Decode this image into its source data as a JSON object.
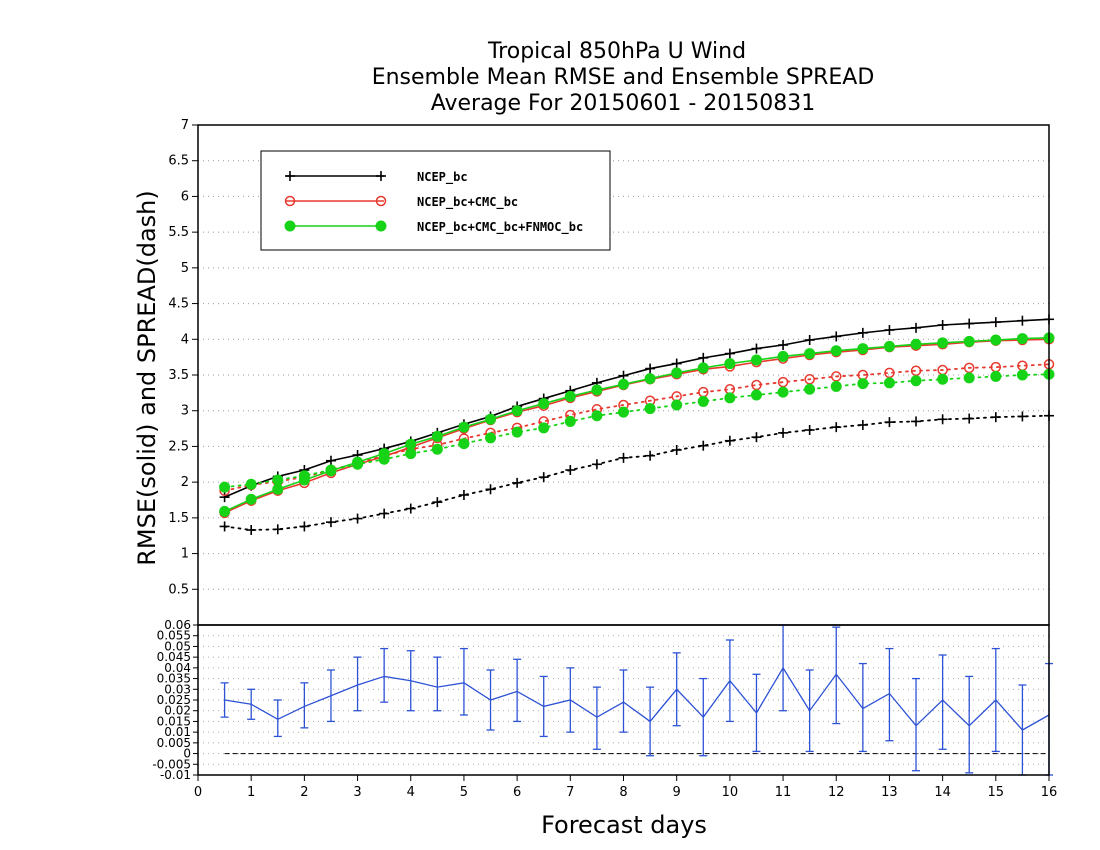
{
  "chart_data": [
    {
      "type": "line",
      "title": [
        "Tropical 850hPa U Wind",
        "Ensemble Mean RMSE and Ensemble SPREAD",
        "Average For 20150601 - 20150831"
      ],
      "ylabel": "RMSE(solid) and SPREAD(dash)",
      "ylim": [
        0,
        7
      ],
      "yticks": [
        "0.5",
        "1",
        "1.5",
        "2",
        "2.5",
        "3",
        "3.5",
        "4",
        "4.5",
        "5",
        "5.5",
        "6",
        "6.5",
        "7"
      ],
      "x": [
        0.5,
        1,
        1.5,
        2,
        2.5,
        3,
        3.5,
        4,
        4.5,
        5,
        5.5,
        6,
        6.5,
        7,
        7.5,
        8,
        8.5,
        9,
        9.5,
        10,
        10.5,
        11,
        11.5,
        12,
        12.5,
        13,
        13.5,
        14,
        14.5,
        15,
        15.5,
        16
      ],
      "grid": true,
      "legend_position": "top-left",
      "series": [
        {
          "name": "NCEP_bc",
          "style": "solid",
          "marker": "plus",
          "color": "#000000",
          "values": [
            1.79,
            1.95,
            2.08,
            2.17,
            2.3,
            2.38,
            2.47,
            2.57,
            2.69,
            2.81,
            2.92,
            3.06,
            3.17,
            3.28,
            3.39,
            3.49,
            3.59,
            3.66,
            3.74,
            3.8,
            3.87,
            3.92,
            3.99,
            4.04,
            4.09,
            4.13,
            4.16,
            4.2,
            4.22,
            4.24,
            4.26,
            4.28
          ]
        },
        {
          "name": "NCEP_bc",
          "style": "dash",
          "marker": "plus",
          "color": "#000000",
          "values": [
            1.38,
            1.33,
            1.34,
            1.38,
            1.44,
            1.49,
            1.56,
            1.63,
            1.72,
            1.82,
            1.9,
            1.99,
            2.07,
            2.17,
            2.25,
            2.34,
            2.37,
            2.45,
            2.51,
            2.58,
            2.63,
            2.69,
            2.73,
            2.77,
            2.8,
            2.84,
            2.85,
            2.88,
            2.89,
            2.91,
            2.92,
            2.93
          ]
        },
        {
          "name": "NCEP_bc+CMC_bc",
          "style": "solid",
          "marker": "open-circle",
          "color": "#e8392f",
          "values": [
            1.57,
            1.74,
            1.88,
            1.99,
            2.13,
            2.25,
            2.36,
            2.49,
            2.62,
            2.75,
            2.87,
            2.98,
            3.07,
            3.18,
            3.27,
            3.36,
            3.44,
            3.51,
            3.58,
            3.62,
            3.68,
            3.73,
            3.78,
            3.82,
            3.85,
            3.89,
            3.91,
            3.93,
            3.96,
            3.98,
            3.99,
            4.0
          ]
        },
        {
          "name": "NCEP_bc+CMC_bc",
          "style": "dash",
          "marker": "open-circle",
          "color": "#e8392f",
          "values": [
            1.88,
            1.96,
            2.01,
            2.07,
            2.17,
            2.27,
            2.37,
            2.46,
            2.52,
            2.61,
            2.69,
            2.76,
            2.85,
            2.94,
            3.02,
            3.08,
            3.14,
            3.2,
            3.26,
            3.3,
            3.36,
            3.4,
            3.44,
            3.48,
            3.5,
            3.53,
            3.56,
            3.57,
            3.6,
            3.61,
            3.63,
            3.65
          ]
        },
        {
          "name": "NCEP_bc+CMC_bc+FNMOC_bc",
          "style": "solid",
          "marker": "filled-circle",
          "color": "#17d317",
          "values": [
            1.59,
            1.76,
            1.9,
            2.03,
            2.16,
            2.28,
            2.4,
            2.53,
            2.64,
            2.77,
            2.88,
            3.0,
            3.1,
            3.2,
            3.29,
            3.37,
            3.45,
            3.53,
            3.6,
            3.66,
            3.71,
            3.76,
            3.8,
            3.84,
            3.87,
            3.9,
            3.93,
            3.95,
            3.97,
            3.99,
            4.01,
            4.02
          ]
        },
        {
          "name": "NCEP_bc+CMC_bc+FNMOC_bc",
          "style": "dash",
          "marker": "filled-circle",
          "color": "#17d317",
          "values": [
            1.93,
            1.97,
            2.03,
            2.09,
            2.17,
            2.25,
            2.32,
            2.4,
            2.46,
            2.54,
            2.62,
            2.7,
            2.76,
            2.85,
            2.93,
            2.98,
            3.03,
            3.08,
            3.13,
            3.18,
            3.22,
            3.26,
            3.3,
            3.34,
            3.38,
            3.39,
            3.42,
            3.44,
            3.46,
            3.48,
            3.5,
            3.51
          ]
        }
      ]
    },
    {
      "type": "line",
      "subtype": "errorbar",
      "xlabel": "Forecast days",
      "ylim": [
        -0.01,
        0.06
      ],
      "yticks": [
        "-0.01",
        "-0.005",
        "0",
        "0.005",
        "0.01",
        "0.015",
        "0.02",
        "0.025",
        "0.03",
        "0.035",
        "0.04",
        "0.045",
        "0.05",
        "0.055",
        "0.06"
      ],
      "xlim": [
        0,
        16
      ],
      "xticks": [
        "0",
        "1",
        "2",
        "3",
        "4",
        "5",
        "6",
        "7",
        "8",
        "9",
        "10",
        "11",
        "12",
        "13",
        "14",
        "15",
        "16"
      ],
      "grid": true,
      "zero_line": 0,
      "series": [
        {
          "color": "#2d52d6",
          "x": [
            0.5,
            1,
            1.5,
            2,
            2.5,
            3,
            3.5,
            4,
            4.5,
            5,
            5.5,
            6,
            6.5,
            7,
            7.5,
            8,
            8.5,
            9,
            9.5,
            10,
            10.5,
            11,
            11.5,
            12,
            12.5,
            13,
            13.5,
            14,
            14.5,
            15,
            15.5,
            16
          ],
          "values": [
            0.025,
            0.023,
            0.016,
            0.022,
            0.027,
            0.032,
            0.036,
            0.034,
            0.031,
            0.033,
            0.025,
            0.029,
            0.022,
            0.025,
            0.017,
            0.024,
            0.015,
            0.03,
            0.017,
            0.034,
            0.019,
            0.04,
            0.02,
            0.037,
            0.021,
            0.028,
            0.013,
            0.025,
            0.013,
            0.025,
            0.011,
            0.018
          ],
          "lower": [
            0.017,
            0.016,
            0.008,
            0.012,
            0.015,
            0.02,
            0.024,
            0.02,
            0.02,
            0.018,
            0.011,
            0.015,
            0.008,
            0.01,
            0.002,
            0.01,
            -0.001,
            0.013,
            -0.001,
            0.015,
            0.001,
            0.02,
            0.001,
            0.014,
            0.001,
            0.006,
            -0.008,
            0.002,
            -0.009,
            0.001,
            -0.01,
            -0.01
          ],
          "upper": [
            0.033,
            0.03,
            0.025,
            0.033,
            0.039,
            0.045,
            0.049,
            0.048,
            0.045,
            0.049,
            0.039,
            0.044,
            0.036,
            0.04,
            0.031,
            0.039,
            0.031,
            0.047,
            0.035,
            0.053,
            0.037,
            0.06,
            0.039,
            0.059,
            0.042,
            0.049,
            0.035,
            0.046,
            0.036,
            0.049,
            0.032,
            0.042
          ]
        }
      ]
    }
  ],
  "legend": {
    "entries": [
      "NCEP_bc",
      "NCEP_bc+CMC_bc",
      "NCEP_bc+CMC_bc+FNMOC_bc"
    ]
  }
}
